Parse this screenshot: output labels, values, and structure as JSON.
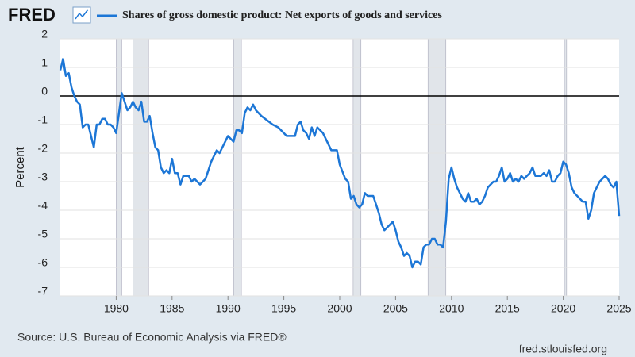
{
  "logo": "FRED",
  "source": "Source: U.S. Bureau of Economic Analysis via FRED®",
  "footer": "fred.stlouisfed.org",
  "chart_data": {
    "type": "line",
    "ylabel": "Percent",
    "xlim": [
      1975,
      2025
    ],
    "xticks": [
      1980,
      1985,
      1990,
      1995,
      2000,
      2005,
      2010,
      2015,
      2020,
      2025
    ],
    "ylim": [
      -7,
      2
    ],
    "yticks": [
      2,
      1,
      0,
      -1,
      -2,
      -3,
      -4,
      -5,
      -6,
      -7
    ],
    "grid": true,
    "recessions": [
      [
        1980.0,
        1980.5
      ],
      [
        1981.5,
        1982.9
      ],
      [
        1990.5,
        1991.2
      ],
      [
        2001.2,
        2001.9
      ],
      [
        2007.9,
        2009.5
      ],
      [
        2020.1,
        2020.3
      ]
    ],
    "series": [
      {
        "name": "Shares of gross domestic product: Net exports of goods and services",
        "color": "#1c76d6",
        "x": [
          1975.0,
          1975.25,
          1975.5,
          1975.75,
          1976.0,
          1976.25,
          1976.5,
          1976.75,
          1977.0,
          1977.25,
          1977.5,
          1977.75,
          1978.0,
          1978.25,
          1978.5,
          1978.75,
          1979.0,
          1979.25,
          1979.5,
          1979.75,
          1980.0,
          1980.25,
          1980.5,
          1980.75,
          1981.0,
          1981.25,
          1981.5,
          1981.75,
          1982.0,
          1982.25,
          1982.5,
          1982.75,
          1983.0,
          1983.25,
          1983.5,
          1983.75,
          1984.0,
          1984.25,
          1984.5,
          1984.75,
          1985.0,
          1985.25,
          1985.5,
          1985.75,
          1986.0,
          1986.5,
          1986.75,
          1987.0,
          1987.5,
          1988.0,
          1988.5,
          1989.0,
          1989.25,
          1989.75,
          1990.0,
          1990.5,
          1990.75,
          1991.0,
          1991.25,
          1991.5,
          1991.75,
          1992.0,
          1992.25,
          1992.5,
          1993.0,
          1994.0,
          1994.5,
          1995.0,
          1995.25,
          1996.0,
          1996.25,
          1996.5,
          1996.75,
          1997.0,
          1997.25,
          1997.5,
          1997.75,
          1998.0,
          1998.5,
          1999.0,
          1999.25,
          1999.75,
          2000.0,
          2000.5,
          2000.75,
          2001.0,
          2001.25,
          2001.5,
          2001.75,
          2002.0,
          2002.25,
          2002.5,
          2003.0,
          2003.25,
          2003.5,
          2003.75,
          2004.0,
          2004.5,
          2004.75,
          2005.0,
          2005.25,
          2005.5,
          2005.75,
          2006.0,
          2006.25,
          2006.5,
          2006.75,
          2007.0,
          2007.25,
          2007.5,
          2007.75,
          2008.0,
          2008.25,
          2008.5,
          2008.75,
          2009.0,
          2009.25,
          2009.5,
          2009.75,
          2010.0,
          2010.25,
          2010.5,
          2011.0,
          2011.25,
          2011.5,
          2011.75,
          2012.0,
          2012.25,
          2012.5,
          2012.75,
          2013.0,
          2013.25,
          2013.5,
          2013.75,
          2014.0,
          2014.25,
          2014.5,
          2014.75,
          2015.0,
          2015.25,
          2015.5,
          2015.75,
          2016.0,
          2016.25,
          2016.5,
          2016.75,
          2017.0,
          2017.25,
          2017.5,
          2017.75,
          2018.0,
          2018.25,
          2018.5,
          2018.75,
          2019.0,
          2019.25,
          2019.5,
          2019.75,
          2020.0,
          2020.25,
          2020.5,
          2020.75,
          2021.0,
          2021.25,
          2021.5,
          2021.75,
          2022.0,
          2022.25,
          2022.5,
          2022.75,
          2023.0,
          2023.25,
          2023.5,
          2023.75,
          2024.0,
          2024.25,
          2024.5,
          2024.75,
          2025.0
        ],
        "values": [
          0.9,
          1.3,
          0.7,
          0.8,
          0.3,
          0.0,
          -0.2,
          -0.3,
          -1.1,
          -1.0,
          -1.0,
          -1.4,
          -1.8,
          -1.0,
          -1.0,
          -0.8,
          -0.8,
          -1.0,
          -1.0,
          -1.1,
          -1.3,
          -0.6,
          0.1,
          -0.2,
          -0.5,
          -0.4,
          -0.2,
          -0.4,
          -0.5,
          -0.2,
          -0.9,
          -0.9,
          -0.7,
          -1.3,
          -1.8,
          -1.9,
          -2.5,
          -2.7,
          -2.6,
          -2.7,
          -2.2,
          -2.7,
          -2.7,
          -3.1,
          -2.8,
          -2.8,
          -3.0,
          -2.9,
          -3.1,
          -2.9,
          -2.3,
          -1.9,
          -2.0,
          -1.6,
          -1.4,
          -1.6,
          -1.2,
          -1.2,
          -1.3,
          -0.6,
          -0.4,
          -0.5,
          -0.3,
          -0.5,
          -0.7,
          -1.0,
          -1.1,
          -1.3,
          -1.4,
          -1.4,
          -1.0,
          -0.9,
          -1.2,
          -1.3,
          -1.5,
          -1.1,
          -1.4,
          -1.1,
          -1.3,
          -1.7,
          -1.9,
          -1.9,
          -2.4,
          -2.9,
          -3.0,
          -3.6,
          -3.5,
          -3.8,
          -3.9,
          -3.8,
          -3.4,
          -3.5,
          -3.5,
          -3.8,
          -4.1,
          -4.5,
          -4.7,
          -4.5,
          -4.4,
          -4.7,
          -5.1,
          -5.3,
          -5.6,
          -5.5,
          -5.6,
          -6.0,
          -5.8,
          -5.8,
          -5.9,
          -5.3,
          -5.2,
          -5.2,
          -5.0,
          -5.0,
          -5.2,
          -5.2,
          -5.3,
          -4.4,
          -2.9,
          -2.5,
          -2.9,
          -3.2,
          -3.6,
          -3.7,
          -3.4,
          -3.7,
          -3.7,
          -3.6,
          -3.8,
          -3.7,
          -3.5,
          -3.2,
          -3.1,
          -3.0,
          -3.0,
          -2.8,
          -2.5,
          -3.0,
          -2.9,
          -2.7,
          -3.0,
          -2.9,
          -3.0,
          -2.8,
          -2.9,
          -2.8,
          -2.7,
          -2.5,
          -2.8,
          -2.8,
          -2.8,
          -2.7,
          -2.8,
          -2.6,
          -3.0,
          -3.0,
          -2.8,
          -2.7,
          -2.3,
          -2.4,
          -2.7,
          -3.2,
          -3.4,
          -3.5,
          -3.6,
          -3.7,
          -3.7,
          -4.3,
          -4.0,
          -3.4,
          -3.2,
          -3.0,
          -2.9,
          -2.8,
          -2.9,
          -3.1,
          -3.2,
          -3.0,
          -4.2
        ]
      }
    ]
  }
}
